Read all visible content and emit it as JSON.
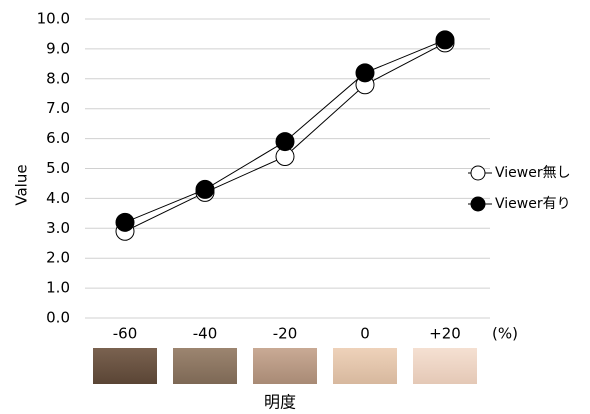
{
  "chart_data": {
    "type": "line",
    "ylabel": "Value",
    "xlabel": "明度",
    "unit_annotation": "(%)",
    "categories": [
      "-60",
      "-40",
      "-20",
      "0",
      "+20"
    ],
    "series": [
      {
        "name": "Viewer無し",
        "color": "#ffffff",
        "values": [
          2.9,
          4.2,
          5.4,
          7.8,
          9.2
        ]
      },
      {
        "name": "Viewer有り",
        "color": "#000000",
        "values": [
          3.2,
          4.3,
          5.9,
          8.2,
          9.3
        ]
      }
    ],
    "ylim": [
      0,
      10
    ],
    "yticks": [
      {
        "value": 0,
        "label": "0.0"
      },
      {
        "value": 1,
        "label": "1.0"
      },
      {
        "value": 2,
        "label": "2.0"
      },
      {
        "value": 3,
        "label": "3.0"
      },
      {
        "value": 4,
        "label": "4.0"
      },
      {
        "value": 5,
        "label": "5.0"
      },
      {
        "value": 6,
        "label": "6.0"
      },
      {
        "value": 7,
        "label": "7.0"
      },
      {
        "value": 8,
        "label": "8.0"
      },
      {
        "value": 9,
        "label": "9.0"
      },
      {
        "value": 10,
        "label": "10.0"
      }
    ],
    "grid": true,
    "legend": "right"
  }
}
